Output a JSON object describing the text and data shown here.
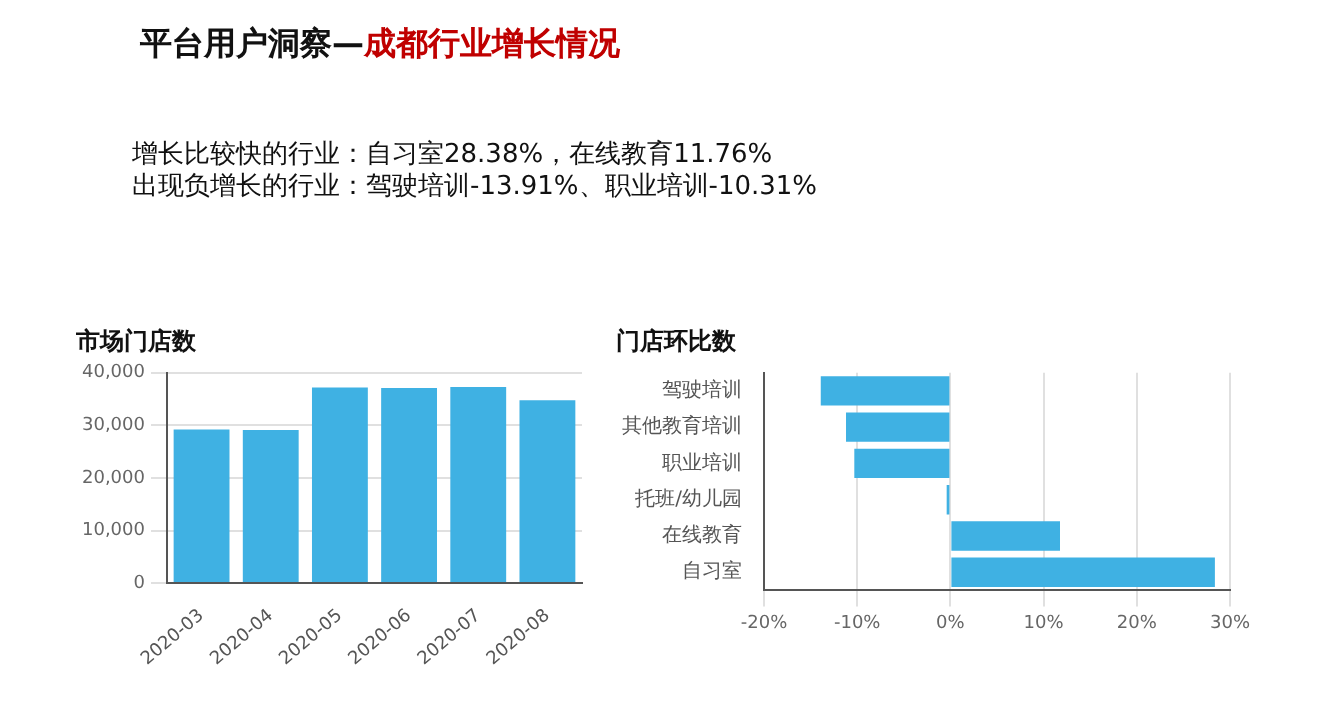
{
  "chart_data": [
    {
      "type": "other",
      "title": "平台用户洞察—",
      "subtitle": "成都行业增长情况",
      "annotations": [
        "增长比较快的行业：自习室28.38%，在线教育11.76%",
        "出现负增长的行业：驾驶培训-13.91%、职业培训-10.31%"
      ]
    },
    {
      "type": "bar",
      "title": "市场门店数",
      "categories": [
        "2020-03",
        "2020-04",
        "2020-05",
        "2020-06",
        "2020-07",
        "2020-08"
      ],
      "values": [
        29200,
        29100,
        37200,
        37100,
        37300,
        34800
      ],
      "color": "#3fb1e3",
      "ylim": [
        0,
        40000
      ],
      "yticks": [
        0,
        {
          "value": 10000,
          "label": "10,000"
        },
        {
          "value": 20000,
          "label": "20,000"
        },
        {
          "value": 30000,
          "label": "30,000"
        },
        {
          "value": 40000,
          "label": "40,000"
        }
      ],
      "grid": "y"
    },
    {
      "type": "bar",
      "orientation": "horizontal",
      "title": "门店环比数",
      "categories": [
        "驾驶培训",
        "其他教育培训",
        "职业培训",
        "托班/幼儿园",
        "在线教育",
        "自习室"
      ],
      "values": [
        -13.91,
        -11.2,
        -10.31,
        -0.4,
        11.76,
        28.38
      ],
      "color": "#3fb1e3",
      "xlim": [
        -20,
        30
      ],
      "xticks": [
        {
          "value": -20,
          "label": "-20%"
        },
        {
          "value": -10,
          "label": "-10%"
        },
        {
          "value": 0,
          "label": "0%"
        },
        {
          "value": 10,
          "label": "10%"
        },
        {
          "value": 20,
          "label": "20%"
        },
        {
          "value": 30,
          "label": "30%"
        }
      ],
      "grid": "x"
    }
  ]
}
